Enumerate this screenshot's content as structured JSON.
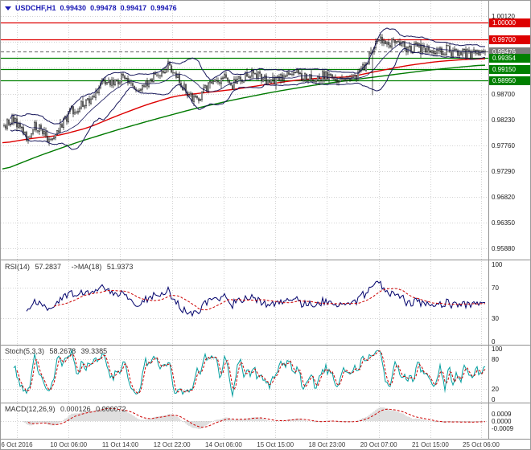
{
  "window": {
    "title_symbol": "USDCHF,H1",
    "open": "0.99430",
    "high": "0.99478",
    "low": "0.99417",
    "close": "0.99476"
  },
  "indicators": {
    "rsi": {
      "name": "RSI(14)",
      "value": "57.2837",
      "ma_name": "->MA(18)",
      "ma_value": "51.9373"
    },
    "stoch": {
      "name": "Stoch(5,3,3)",
      "value": "58.2678",
      "signal_value": "39.3385"
    },
    "macd": {
      "name": "MACD(12,26,9)",
      "value": "0.000126",
      "signal_value": "0.000072"
    }
  },
  "chart_data": {
    "type": "candlestick",
    "symbol": "USDCHF",
    "timeframe": "H1",
    "colors": {
      "grid": "#d2d2d2",
      "separator": "#8e8e8e",
      "candle": "#141414",
      "background": "#ffffff",
      "axis_text": "#1a1a1a",
      "time_text": "#3a3a3a",
      "title": "#1a1ab5",
      "resistance": "#dd0000",
      "support": "#008000",
      "current_price": "#7d7d7d"
    },
    "price_axis": {
      "min": 0.9567,
      "max": 1.004,
      "ticks": [
        {
          "label": "1.00120",
          "v": 1.0012
        },
        {
          "label": "0.98700",
          "v": 0.987
        },
        {
          "label": "0.98230",
          "v": 0.9823
        },
        {
          "label": "0.97760",
          "v": 0.9776
        },
        {
          "label": "0.97290",
          "v": 0.9729
        },
        {
          "label": "0.96820",
          "v": 0.9682
        },
        {
          "label": "0.96350",
          "v": 0.9635
        },
        {
          "label": "0.95880",
          "v": 0.9588
        }
      ],
      "grid_extra": [
        0.9965,
        0.9918
      ]
    },
    "levels": [
      {
        "label": "1.00000",
        "v": 1.0,
        "color": "#dd0000",
        "style": "solid",
        "role": "resistance"
      },
      {
        "label": "0.99700",
        "v": 0.997,
        "color": "#dd0000",
        "style": "solid",
        "role": "resistance"
      },
      {
        "label": "0.99476",
        "v": 0.99476,
        "color": "#7d7d7d",
        "style": "dashed",
        "role": "current-price"
      },
      {
        "label": "0.99354",
        "v": 0.99354,
        "color": "#008000",
        "style": "solid",
        "role": "support"
      },
      {
        "label": "0.99150",
        "v": 0.9915,
        "color": "#008000",
        "style": "solid",
        "role": "support"
      },
      {
        "label": "0.98950",
        "v": 0.9895,
        "color": "#008000",
        "style": "solid",
        "role": "support"
      }
    ],
    "time_axis": {
      "labels": [
        {
          "label": "6 Oct 2016",
          "f": 0.033
        },
        {
          "label": "10 Oct 06:00",
          "f": 0.139
        },
        {
          "label": "11 Oct 14:00",
          "f": 0.245
        },
        {
          "label": "12 Oct 22:00",
          "f": 0.351
        },
        {
          "label": "14 Oct 06:00",
          "f": 0.457
        },
        {
          "label": "15 Oct 15:00",
          "f": 0.563
        },
        {
          "label": "18 Oct 23:00",
          "f": 0.669
        },
        {
          "label": "20 Oct 07:00",
          "f": 0.775
        },
        {
          "label": "21 Oct 15:00",
          "f": 0.881
        },
        {
          "label": "25 Oct 06:00",
          "f": 0.985
        }
      ]
    },
    "candles": {
      "count": 300,
      "seed": 11,
      "noise": 0.0009,
      "wick": 0.0006,
      "long_wick_frac": 0.766,
      "long_wick_size": 0.0075,
      "path": [
        [
          0,
          0.9812
        ],
        [
          0.02,
          0.9826
        ],
        [
          0.035,
          0.9802
        ],
        [
          0.05,
          0.9788
        ],
        [
          0.065,
          0.9812
        ],
        [
          0.08,
          0.98
        ],
        [
          0.095,
          0.9782
        ],
        [
          0.11,
          0.98
        ],
        [
          0.125,
          0.9822
        ],
        [
          0.14,
          0.9838
        ],
        [
          0.16,
          0.9848
        ],
        [
          0.18,
          0.9862
        ],
        [
          0.2,
          0.9888
        ],
        [
          0.215,
          0.9897
        ],
        [
          0.23,
          0.989
        ],
        [
          0.245,
          0.9902
        ],
        [
          0.26,
          0.9893
        ],
        [
          0.275,
          0.988
        ],
        [
          0.29,
          0.9886
        ],
        [
          0.305,
          0.9897
        ],
        [
          0.32,
          0.9907
        ],
        [
          0.34,
          0.9922
        ],
        [
          0.355,
          0.9905
        ],
        [
          0.37,
          0.9887
        ],
        [
          0.385,
          0.9868
        ],
        [
          0.4,
          0.986
        ],
        [
          0.42,
          0.9878
        ],
        [
          0.44,
          0.9893
        ],
        [
          0.46,
          0.9897
        ],
        [
          0.475,
          0.9887
        ],
        [
          0.49,
          0.9893
        ],
        [
          0.505,
          0.9906
        ],
        [
          0.52,
          0.9909
        ],
        [
          0.535,
          0.9898
        ],
        [
          0.55,
          0.989
        ],
        [
          0.565,
          0.9894
        ],
        [
          0.58,
          0.9902
        ],
        [
          0.6,
          0.9909
        ],
        [
          0.62,
          0.99
        ],
        [
          0.64,
          0.9897
        ],
        [
          0.66,
          0.9903
        ],
        [
          0.68,
          0.99
        ],
        [
          0.7,
          0.9897
        ],
        [
          0.72,
          0.99
        ],
        [
          0.74,
          0.9906
        ],
        [
          0.755,
          0.993
        ],
        [
          0.77,
          0.9962
        ],
        [
          0.785,
          0.9968
        ],
        [
          0.8,
          0.9961
        ],
        [
          0.815,
          0.9966
        ],
        [
          0.83,
          0.9957
        ],
        [
          0.845,
          0.995
        ],
        [
          0.86,
          0.9956
        ],
        [
          0.875,
          0.9948
        ],
        [
          0.89,
          0.9952
        ],
        [
          0.905,
          0.9945
        ],
        [
          0.92,
          0.995
        ],
        [
          0.935,
          0.9944
        ],
        [
          0.95,
          0.9947
        ],
        [
          0.965,
          0.9941
        ],
        [
          0.98,
          0.9945
        ],
        [
          1,
          0.9948
        ]
      ]
    },
    "overlays": {
      "bollinger": {
        "period": 20,
        "dev": 2,
        "color": "#16165a"
      },
      "ma_red": {
        "color": "#dd0000",
        "points": [
          [
            0,
            0.9779
          ],
          [
            0.06,
            0.9788
          ],
          [
            0.12,
            0.9794
          ],
          [
            0.18,
            0.9808
          ],
          [
            0.24,
            0.983
          ],
          [
            0.3,
            0.985
          ],
          [
            0.36,
            0.9866
          ],
          [
            0.42,
            0.9872
          ],
          [
            0.48,
            0.9878
          ],
          [
            0.54,
            0.9886
          ],
          [
            0.6,
            0.9894
          ],
          [
            0.66,
            0.9899
          ],
          [
            0.72,
            0.9901
          ],
          [
            0.78,
            0.9912
          ],
          [
            0.84,
            0.9922
          ],
          [
            0.9,
            0.9929
          ],
          [
            0.96,
            0.9933
          ],
          [
            1,
            0.9934
          ]
        ]
      },
      "ma_green": {
        "color": "#007a00",
        "points": [
          [
            0,
            0.9729
          ],
          [
            0.08,
            0.9757
          ],
          [
            0.16,
            0.9782
          ],
          [
            0.24,
            0.9804
          ],
          [
            0.32,
            0.9824
          ],
          [
            0.4,
            0.9843
          ],
          [
            0.48,
            0.9859
          ],
          [
            0.56,
            0.9873
          ],
          [
            0.64,
            0.9885
          ],
          [
            0.72,
            0.9895
          ],
          [
            0.8,
            0.9904
          ],
          [
            0.88,
            0.9913
          ],
          [
            0.96,
            0.992
          ],
          [
            1,
            0.9923
          ]
        ]
      }
    },
    "panels": {
      "rsi": {
        "period": 14,
        "ma_period": 18,
        "color": "#00006b",
        "signal_color": "#cc0000",
        "range": [
          0,
          100
        ],
        "ticks": [
          {
            "label": "100",
            "v": 100
          },
          {
            "label": "70",
            "v": 70
          },
          {
            "label": "30",
            "v": 30
          },
          {
            "label": "0",
            "v": 0
          }
        ]
      },
      "stoch": {
        "k": 5,
        "d": 3,
        "slowing": 3,
        "color": "#009e9e",
        "signal_color": "#cc0000",
        "range": [
          0,
          100
        ],
        "ticks": [
          {
            "label": "100",
            "v": 100
          },
          {
            "label": "80",
            "v": 80
          },
          {
            "label": "20",
            "v": 20
          },
          {
            "label": "0",
            "v": 0
          }
        ]
      },
      "macd": {
        "fast": 12,
        "slow": 26,
        "signal": 9,
        "hist_color": "#bfbfbf",
        "signal_color": "#cc0000",
        "ticks": [
          {
            "label": "0.0009",
            "v": 0.0009
          },
          {
            "label": "0.0000",
            "v": 0
          },
          {
            "label": "-0.0009",
            "v": -0.0009
          }
        ]
      }
    }
  }
}
